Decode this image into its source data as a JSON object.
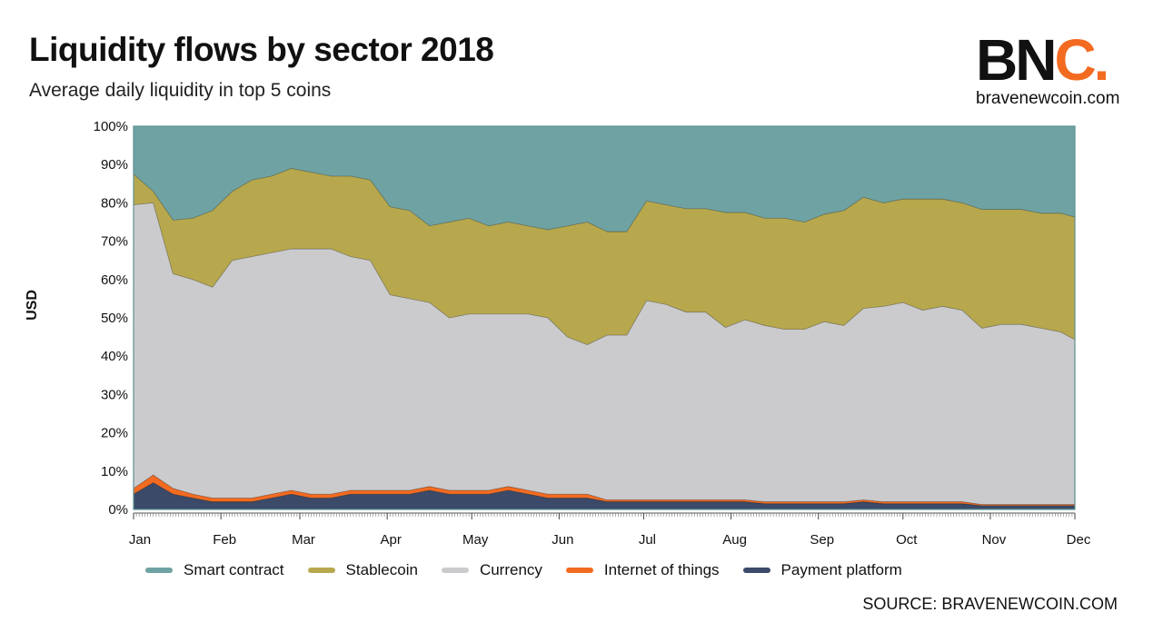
{
  "header": {
    "title": "Liquidity flows by sector 2018",
    "subtitle": "Average daily liquidity in top 5 coins"
  },
  "logo": {
    "mark_left": "BN",
    "mark_accent": "C.",
    "url": "bravenewcoin.com"
  },
  "source": "SOURCE: BRAVENEWCOIN.COM",
  "colors": {
    "smart_contract": "#6fa3a3",
    "stablecoin": "#b7a84e",
    "currency": "#cbcbcd",
    "internet_of_things": "#f26b21",
    "payment_platform": "#3a4a68",
    "accent": "#f26b21"
  },
  "chart_data": {
    "type": "area",
    "stacked": true,
    "normalized": true,
    "ylabel": "USD",
    "xlabel": "",
    "ylim": [
      0,
      100
    ],
    "y_ticks": [
      "0%",
      "10%",
      "20%",
      "30%",
      "40%",
      "50%",
      "60%",
      "70%",
      "80%",
      "90%",
      "100%"
    ],
    "x_ticks": [
      "Jan",
      "Feb",
      "Mar",
      "Apr",
      "May",
      "Jun",
      "Jul",
      "Aug",
      "Sep",
      "Oct",
      "Nov",
      "Dec"
    ],
    "grid": true,
    "legend_position": "bottom",
    "x_dates": [
      "2018-01-01",
      "2018-01-08",
      "2018-01-15",
      "2018-01-22",
      "2018-01-29",
      "2018-02-05",
      "2018-02-12",
      "2018-02-19",
      "2018-02-26",
      "2018-03-05",
      "2018-03-12",
      "2018-03-19",
      "2018-03-26",
      "2018-04-02",
      "2018-04-09",
      "2018-04-16",
      "2018-04-23",
      "2018-04-30",
      "2018-05-07",
      "2018-05-14",
      "2018-05-21",
      "2018-05-28",
      "2018-06-04",
      "2018-06-11",
      "2018-06-18",
      "2018-06-25",
      "2018-07-02",
      "2018-07-09",
      "2018-07-16",
      "2018-07-23",
      "2018-07-30",
      "2018-08-06",
      "2018-08-13",
      "2018-08-20",
      "2018-08-27",
      "2018-09-03",
      "2018-09-10",
      "2018-09-17",
      "2018-09-24",
      "2018-10-01",
      "2018-10-08",
      "2018-10-15",
      "2018-10-22",
      "2018-10-29",
      "2018-11-05",
      "2018-11-12",
      "2018-11-19",
      "2018-11-26",
      "2018-12-01"
    ],
    "series": [
      {
        "name": "Payment platform",
        "values": [
          4,
          7,
          4,
          3,
          2,
          2,
          2,
          3,
          4,
          3,
          3,
          4,
          4,
          4,
          4,
          5,
          4,
          4,
          4,
          5,
          4,
          3,
          3,
          3,
          2,
          2,
          2,
          2,
          2,
          2,
          2,
          2,
          1.5,
          1.5,
          1.5,
          1.5,
          1.5,
          2,
          1.5,
          1.5,
          1.5,
          1.5,
          1.5,
          1,
          1,
          1,
          1,
          1,
          1
        ]
      },
      {
        "name": "Internet of things",
        "values": [
          1.5,
          2,
          1.5,
          1,
          1,
          1,
          1,
          1,
          1,
          1,
          1,
          1,
          1,
          1,
          1,
          1,
          1,
          1,
          1,
          1,
          1,
          1,
          1,
          1,
          0.5,
          0.5,
          0.5,
          0.5,
          0.5,
          0.5,
          0.5,
          0.5,
          0.5,
          0.5,
          0.5,
          0.5,
          0.5,
          0.5,
          0.5,
          0.5,
          0.5,
          0.5,
          0.5,
          0.3,
          0.3,
          0.3,
          0.3,
          0.3,
          0.3
        ]
      },
      {
        "name": "Currency",
        "values": [
          74,
          71,
          56,
          56,
          55,
          62,
          63,
          63,
          63,
          64,
          64,
          61,
          60,
          51,
          50,
          48,
          45,
          46,
          46,
          45,
          46,
          46,
          41,
          39,
          43,
          43,
          52,
          51,
          49,
          49,
          45,
          47,
          46,
          45,
          45,
          47,
          46,
          50,
          51,
          52,
          50,
          51,
          50,
          46,
          47,
          47,
          46,
          45,
          43
        ]
      },
      {
        "name": "Stablecoin",
        "values": [
          8,
          3,
          14,
          16,
          20,
          18,
          20,
          20,
          21,
          20,
          19,
          21,
          21,
          23,
          23,
          20,
          25,
          25,
          23,
          24,
          23,
          23,
          29,
          32,
          27,
          27,
          26,
          26,
          27,
          27,
          30,
          28,
          28,
          29,
          28,
          28,
          30,
          29,
          27,
          27,
          29,
          28,
          28,
          31,
          30,
          30,
          30,
          31,
          32
        ]
      },
      {
        "name": "Smart contract",
        "values": [
          12.5,
          17,
          24.5,
          24,
          22,
          17,
          14,
          13,
          11,
          12,
          13,
          13,
          14,
          21,
          22,
          26,
          25,
          24,
          26,
          25,
          26,
          27,
          26,
          25,
          27.5,
          27.5,
          19.5,
          20.5,
          21.5,
          21.5,
          22.5,
          22.5,
          24,
          24,
          25,
          23,
          22,
          18.5,
          20,
          19,
          19,
          19,
          20,
          21.7,
          21.7,
          21.7,
          22.7,
          22.7,
          23.7
        ]
      }
    ]
  }
}
